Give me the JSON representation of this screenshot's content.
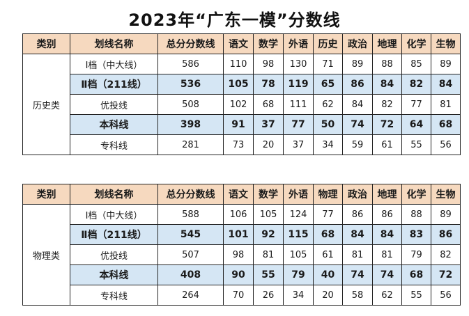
{
  "title": "2023年“广东一模”分数线",
  "tables": [
    {
      "headers": [
        "类别",
        "划线名称",
        "总分分数线",
        "语文",
        "数学",
        "外语",
        "历史",
        "政治",
        "地理",
        "化学",
        "生物"
      ],
      "category": "历史类",
      "rows": [
        {
          "name": "Ⅰ档（中大线）",
          "values": [
            "586",
            "110",
            "98",
            "130",
            "71",
            "89",
            "88",
            "85",
            "89"
          ],
          "highlight": false
        },
        {
          "name": "Ⅱ档（211线）",
          "values": [
            "536",
            "105",
            "78",
            "119",
            "65",
            "86",
            "84",
            "82",
            "84"
          ],
          "highlight": true
        },
        {
          "name": "优投线",
          "values": [
            "508",
            "102",
            "68",
            "111",
            "62",
            "84",
            "82",
            "77",
            "81"
          ],
          "highlight": false
        },
        {
          "name": "本科线",
          "values": [
            "398",
            "91",
            "37",
            "77",
            "50",
            "74",
            "72",
            "64",
            "68"
          ],
          "highlight": true
        },
        {
          "name": "专科线",
          "values": [
            "281",
            "73",
            "20",
            "37",
            "34",
            "59",
            "61",
            "55",
            "56"
          ],
          "highlight": false
        }
      ]
    },
    {
      "headers": [
        "类别",
        "划线名称",
        "总分分数线",
        "语文",
        "数学",
        "外语",
        "物理",
        "政治",
        "地理",
        "化学",
        "生物"
      ],
      "category": "物理类",
      "rows": [
        {
          "name": "Ⅰ档（中大线）",
          "values": [
            "588",
            "106",
            "105",
            "124",
            "77",
            "86",
            "86",
            "88",
            "89"
          ],
          "highlight": false
        },
        {
          "name": "Ⅱ档（211线）",
          "values": [
            "545",
            "101",
            "92",
            "115",
            "68",
            "84",
            "84",
            "83",
            "86"
          ],
          "highlight": true
        },
        {
          "name": "优投线",
          "values": [
            "507",
            "98",
            "81",
            "105",
            "61",
            "81",
            "81",
            "79",
            "82"
          ],
          "highlight": false
        },
        {
          "name": "本科线",
          "values": [
            "408",
            "90",
            "55",
            "79",
            "40",
            "74",
            "74",
            "68",
            "72"
          ],
          "highlight": true
        },
        {
          "name": "专科线",
          "values": [
            "264",
            "70",
            "26",
            "34",
            "20",
            "58",
            "62",
            "55",
            "56"
          ],
          "highlight": false
        }
      ]
    }
  ]
}
